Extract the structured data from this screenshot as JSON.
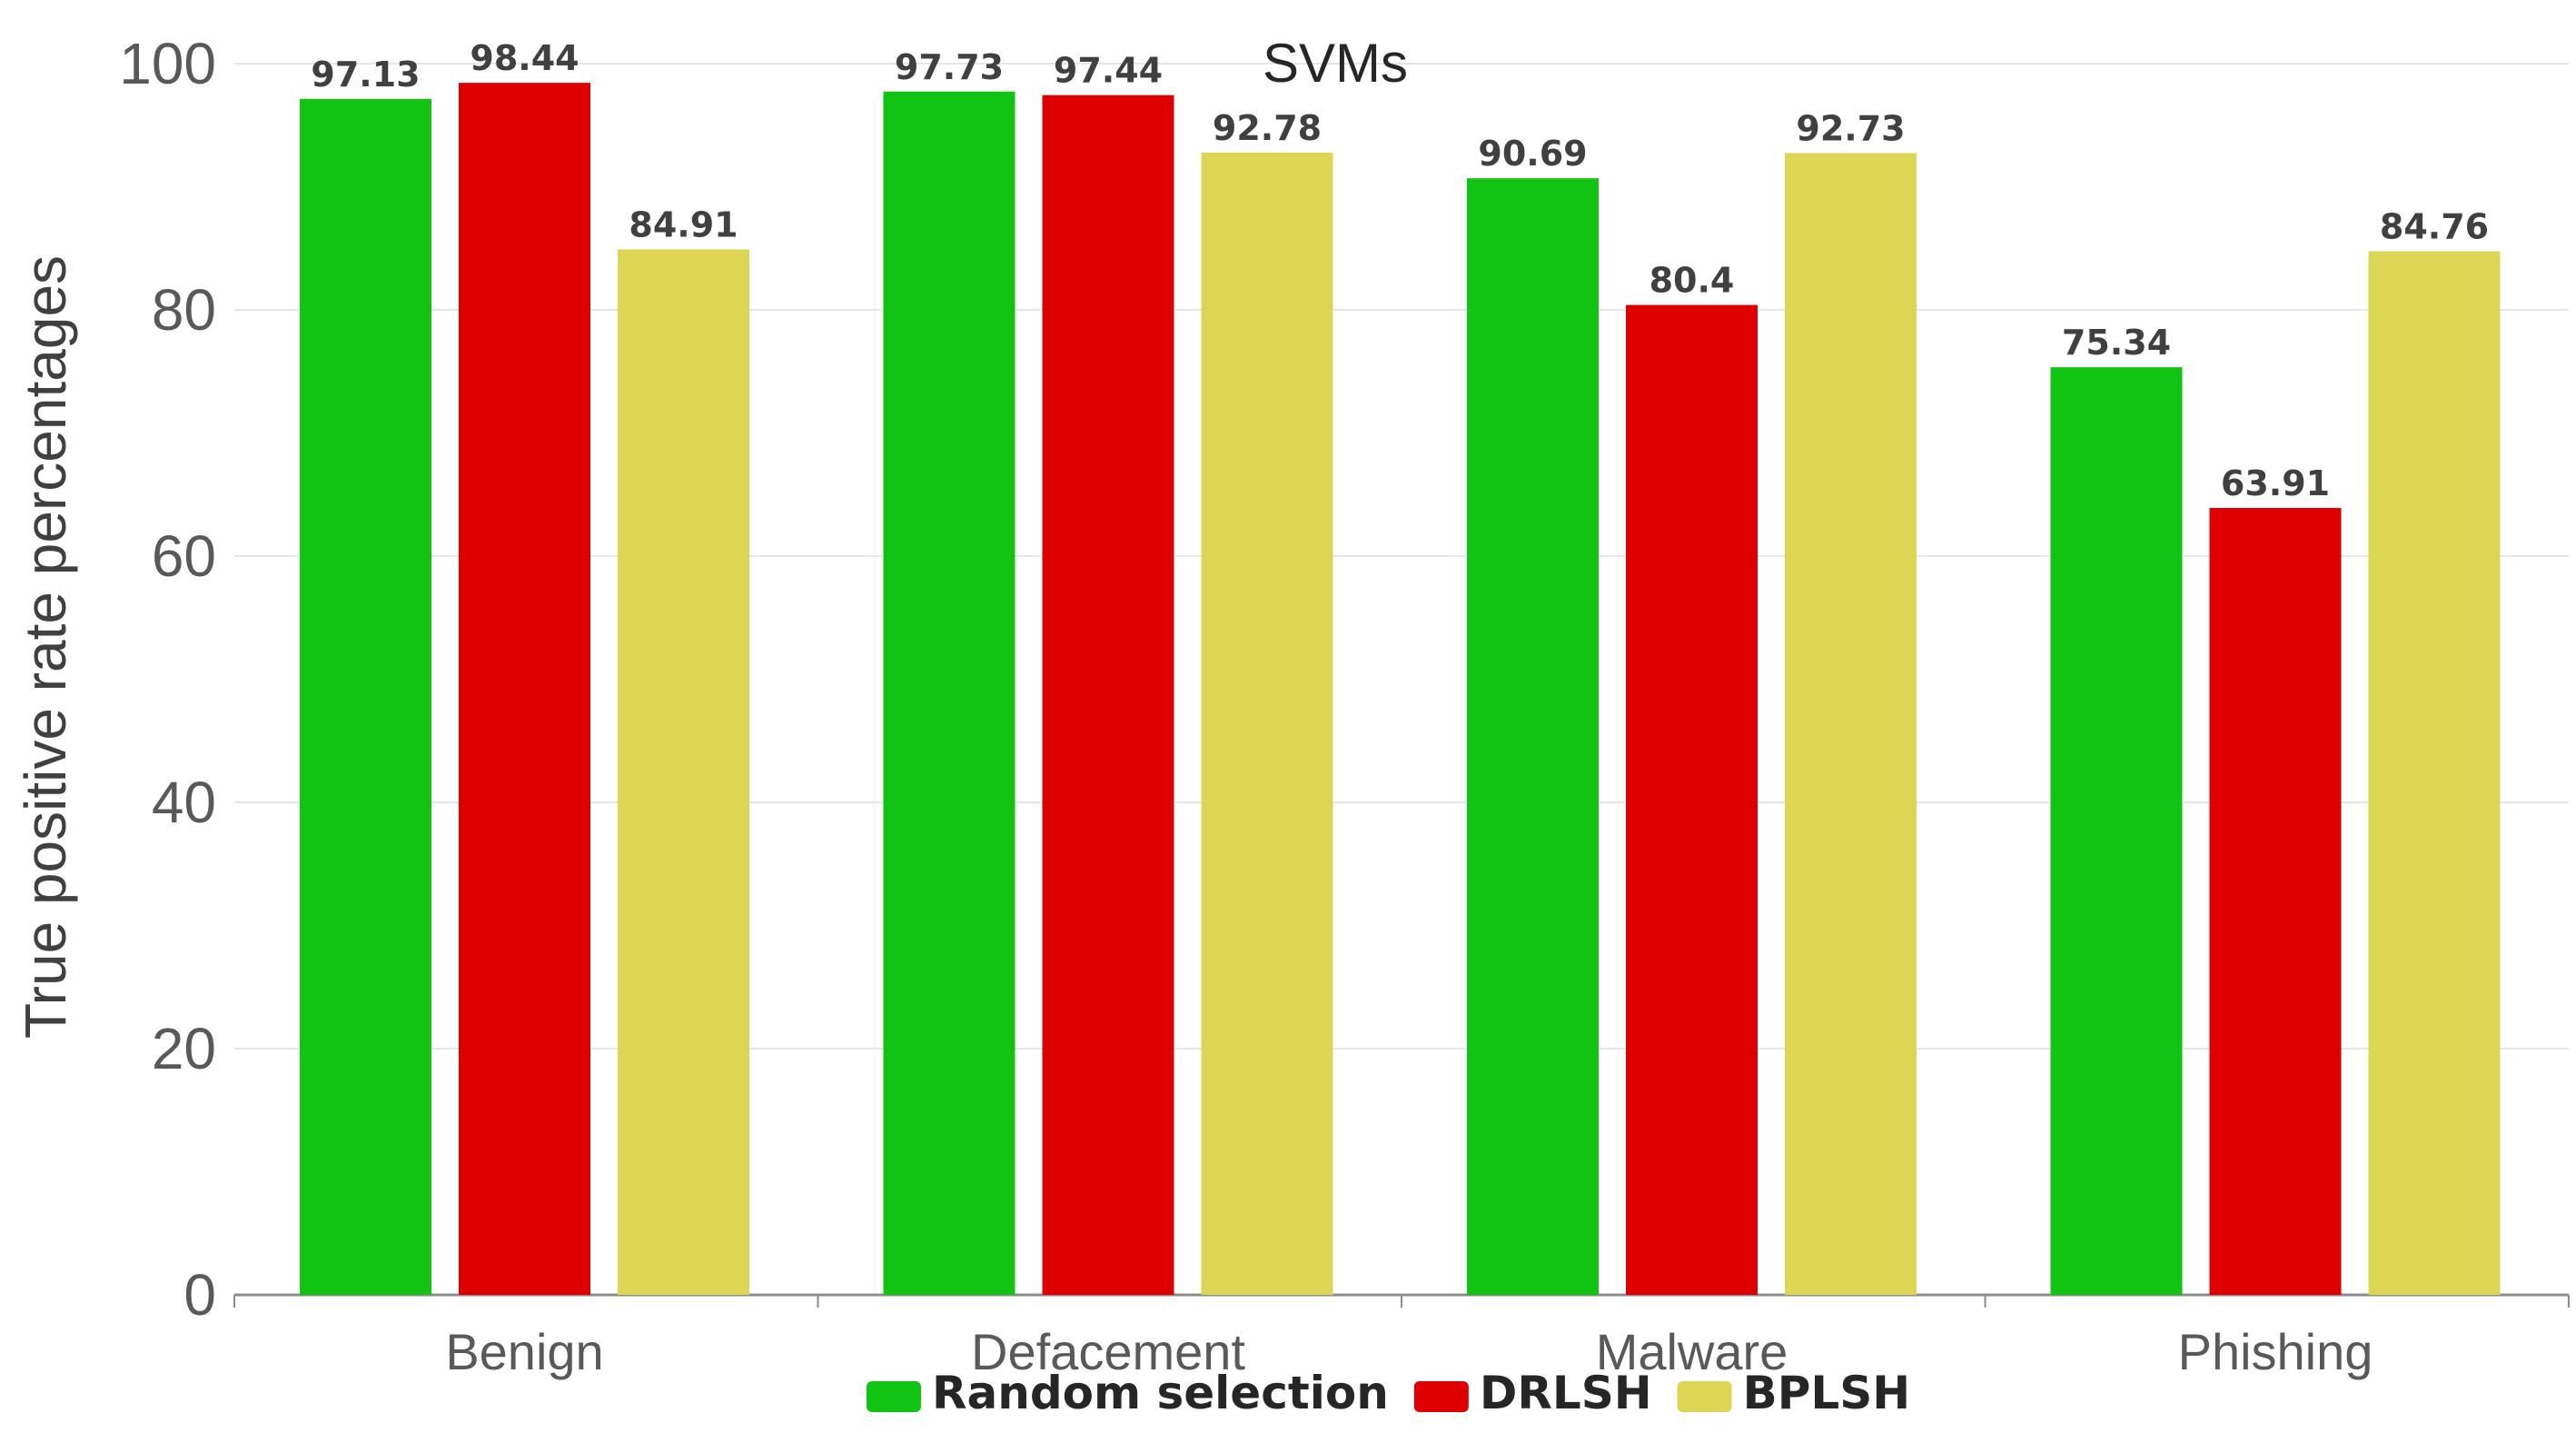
{
  "chart_data": {
    "type": "bar",
    "title": "SVMs",
    "xlabel": "",
    "ylabel": "True positive rate percentages",
    "ylim": [
      0,
      100
    ],
    "yticks": [
      0,
      20,
      40,
      60,
      80,
      100
    ],
    "grid": true,
    "legend_position": "bottom-center",
    "categories": [
      "Benign",
      "Defacement",
      "Malware",
      "Phishing"
    ],
    "series": [
      {
        "name": "Random selection",
        "color": "#11c411",
        "values": [
          97.13,
          97.73,
          90.69,
          75.34
        ],
        "labels": [
          "97.13",
          "97.73",
          "90.69",
          "75.34"
        ]
      },
      {
        "name": "DRLSH",
        "color": "#de0000",
        "values": [
          98.44,
          97.44,
          80.4,
          63.91
        ],
        "labels": [
          "98.44",
          "97.44",
          "80.4",
          "63.91"
        ]
      },
      {
        "name": "BPLSH",
        "color": "#ddd655",
        "values": [
          84.91,
          92.78,
          92.73,
          84.76
        ],
        "labels": [
          "84.91",
          "92.78",
          "92.73",
          "84.76"
        ]
      }
    ]
  }
}
